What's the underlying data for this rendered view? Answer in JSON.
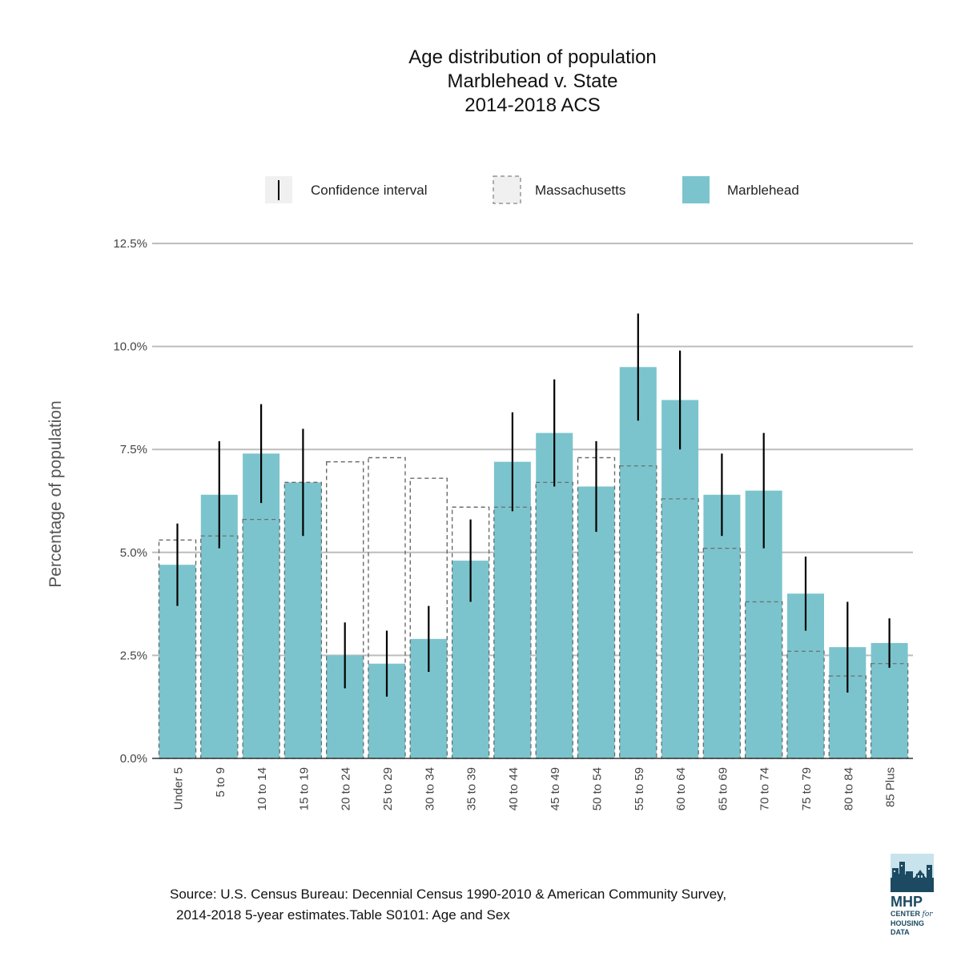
{
  "chart_data": {
    "type": "bar",
    "title": [
      "Age distribution of population",
      "Marblehead  v. State",
      "2014-2018 ACS"
    ],
    "ylabel": "Percentage of population",
    "xlabel": "",
    "ylim": [
      0,
      12.5
    ],
    "yticks": [
      0,
      2.5,
      5,
      7.5,
      10,
      12.5
    ],
    "ytick_labels": [
      "0.0%",
      "2.5%",
      "5.0%",
      "7.5%",
      "10.0%",
      "12.5%"
    ],
    "grid": true,
    "legend_position": "top",
    "legend": {
      "ci_label": "Confidence interval",
      "state_label": "Massachusetts",
      "town_label": "Marblehead"
    },
    "categories": [
      "Under 5",
      "5 to 9",
      "10 to 14",
      "15 to 19",
      "20 to 24",
      "25 to 29",
      "30 to 34",
      "35 to 39",
      "40 to 44",
      "45 to 49",
      "50 to 54",
      "55 to 59",
      "60 to 64",
      "65 to 69",
      "70 to 74",
      "75 to 79",
      "80 to 84",
      "85 Plus"
    ],
    "series": [
      {
        "name": "Marblehead",
        "values": [
          4.7,
          6.4,
          7.4,
          6.7,
          2.5,
          2.3,
          2.9,
          4.8,
          7.2,
          7.9,
          6.6,
          9.5,
          8.7,
          6.4,
          6.5,
          4.0,
          2.7,
          2.8
        ],
        "ci_low": [
          3.7,
          5.1,
          6.2,
          5.4,
          1.7,
          1.5,
          2.1,
          3.8,
          6.0,
          6.6,
          5.5,
          8.2,
          7.5,
          5.4,
          5.1,
          3.1,
          1.6,
          2.2
        ],
        "ci_high": [
          5.7,
          7.7,
          8.6,
          8.0,
          3.3,
          3.1,
          3.7,
          5.8,
          8.4,
          9.2,
          7.7,
          10.8,
          9.9,
          7.4,
          7.9,
          4.9,
          3.8,
          3.4
        ]
      },
      {
        "name": "Massachusetts",
        "values": [
          5.3,
          5.4,
          5.8,
          6.7,
          7.2,
          7.3,
          6.8,
          6.1,
          6.1,
          6.7,
          7.3,
          7.1,
          6.3,
          5.1,
          3.8,
          2.6,
          2.0,
          2.3
        ]
      }
    ]
  },
  "colors": {
    "town_fill": "#7bc4cd",
    "grid": "#bdbdbd",
    "ci": "#000000",
    "state_outline": "#666666",
    "legend_key_bg": "#f0f0f0"
  },
  "source": {
    "line1": "Source: U.S. Census Bureau: Decennial Census 1990-2010 & American Community Survey,",
    "line2": "2014-2018 5-year estimates.Table S0101: Age and Sex"
  },
  "logo": {
    "name": "MHP",
    "sub1": "CENTER",
    "sub_for": "for",
    "sub2": "HOUSING DATA"
  }
}
